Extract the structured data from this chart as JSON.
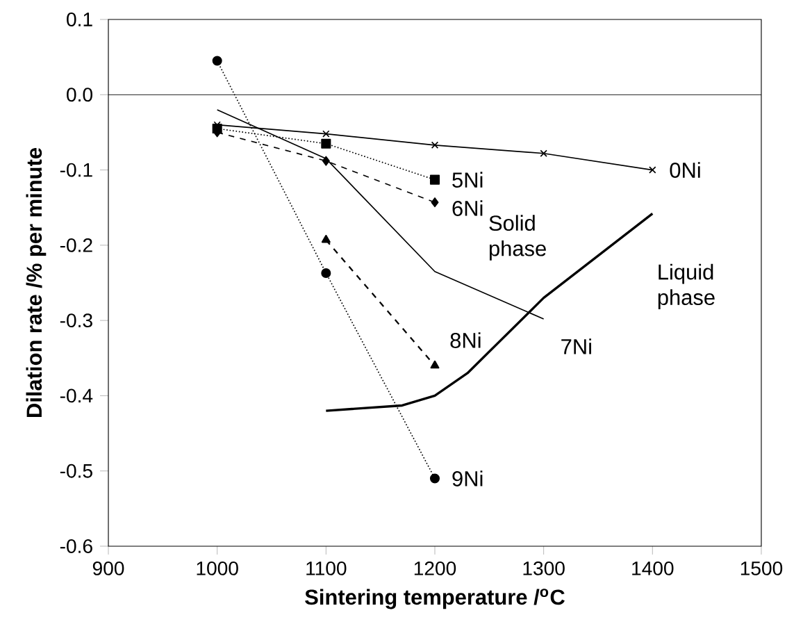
{
  "chart_data": {
    "type": "line",
    "xlabel": "Sintering temperature /$^{o}$C",
    "ylabel": "Dilation rate /% per minute",
    "xlim": [
      900,
      1500
    ],
    "xticks": [
      900,
      1000,
      1100,
      1200,
      1300,
      1400,
      1500
    ],
    "ylim": [
      -0.6,
      0.1
    ],
    "yticks": [
      -0.6,
      -0.5,
      -0.4,
      -0.3,
      -0.2,
      -0.1,
      {
        "value": 0,
        "label": "0.0"
      },
      0.1
    ],
    "grid": false,
    "ref_lines": [
      {
        "axis": "y",
        "value": 0,
        "color": "#000000"
      }
    ],
    "annotations": [
      "Solid phase",
      "Liquid phase"
    ],
    "series": [
      {
        "name": "0Ni",
        "color": "#000000",
        "x": [
          1000,
          1100,
          1200,
          1300,
          1400
        ],
        "values": [
          -0.04,
          -0.052,
          -0.067,
          -0.078,
          -0.1
        ],
        "marker": "cross",
        "line_style": "solid"
      },
      {
        "name": "5Ni",
        "color": "#000000",
        "x": [
          1000,
          1100,
          1200
        ],
        "values": [
          -0.045,
          -0.065,
          -0.113
        ],
        "marker": "square",
        "line_style": "dotted"
      },
      {
        "name": "6Ni",
        "color": "#000000",
        "x": [
          1000,
          1100,
          1200
        ],
        "values": [
          -0.05,
          -0.088,
          -0.143
        ],
        "marker": "diamond",
        "line_style": "dashed"
      },
      {
        "name": "7Ni",
        "color": "#000000",
        "x": [
          1000,
          1100,
          1200,
          1300
        ],
        "values": [
          -0.02,
          -0.085,
          -0.235,
          -0.298
        ],
        "marker": "none",
        "line_style": "solid"
      },
      {
        "name": "8Ni",
        "color": "#000000",
        "x": [
          1100,
          1200
        ],
        "values": [
          -0.193,
          -0.36
        ],
        "marker": "triangle",
        "line_style": "dashed"
      },
      {
        "name": "9Ni",
        "color": "#000000",
        "x": [
          1000,
          1100,
          1200
        ],
        "values": [
          0.045,
          -0.237,
          -0.51
        ],
        "marker": "circle",
        "line_style": "dotted"
      },
      {
        "color": "#000000",
        "x": [
          1100,
          1170,
          1200,
          1230,
          1300,
          1400
        ],
        "values": [
          -0.42,
          -0.413,
          -0.4,
          -0.37,
          -0.27,
          -0.158
        ],
        "marker": "none",
        "line_style": "solid"
      }
    ]
  }
}
